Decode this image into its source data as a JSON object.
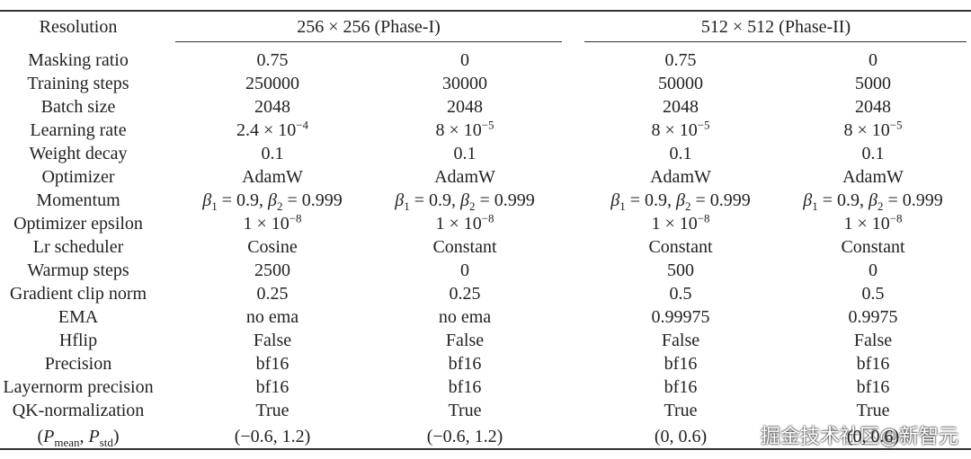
{
  "table": {
    "header": {
      "label": "Resolution",
      "groups": [
        "256 × 256 (Phase-I)",
        "512 × 512 (Phase-II)"
      ]
    },
    "rows": [
      {
        "label": "Masking ratio",
        "cells": [
          "0.75",
          "0",
          "0.75",
          "0"
        ]
      },
      {
        "label": "Training steps",
        "cells": [
          "250000",
          "30000",
          "50000",
          "5000"
        ]
      },
      {
        "label": "Batch size",
        "cells": [
          "2048",
          "2048",
          "2048",
          "2048"
        ]
      },
      {
        "label": "Learning rate",
        "cells": [
          [
            {
              "text": "2.4 × 10"
            },
            {
              "sup": "−4"
            }
          ],
          [
            {
              "text": "8 × 10"
            },
            {
              "sup": "−5"
            }
          ],
          [
            {
              "text": "8 × 10"
            },
            {
              "sup": "−5"
            }
          ],
          [
            {
              "text": "8 × 10"
            },
            {
              "sup": "−5"
            }
          ]
        ]
      },
      {
        "label": "Weight decay",
        "cells": [
          "0.1",
          "0.1",
          "0.1",
          "0.1"
        ]
      },
      {
        "label": "Optimizer",
        "cells": [
          "AdamW",
          "AdamW",
          "AdamW",
          "AdamW"
        ]
      },
      {
        "label": "Momentum",
        "cells": [
          [
            {
              "math": "β"
            },
            {
              "sub": "1"
            },
            {
              "text": " = 0.9, "
            },
            {
              "math": "β"
            },
            {
              "sub": "2"
            },
            {
              "text": " = 0.999"
            }
          ],
          [
            {
              "math": "β"
            },
            {
              "sub": "1"
            },
            {
              "text": " = 0.9, "
            },
            {
              "math": "β"
            },
            {
              "sub": "2"
            },
            {
              "text": " = 0.999"
            }
          ],
          [
            {
              "math": "β"
            },
            {
              "sub": "1"
            },
            {
              "text": " = 0.9, "
            },
            {
              "math": "β"
            },
            {
              "sub": "2"
            },
            {
              "text": " = 0.999"
            }
          ],
          [
            {
              "math": "β"
            },
            {
              "sub": "1"
            },
            {
              "text": " = 0.9, "
            },
            {
              "math": "β"
            },
            {
              "sub": "2"
            },
            {
              "text": " = 0.999"
            }
          ]
        ]
      },
      {
        "label": "Optimizer epsilon",
        "cells": [
          [
            {
              "text": "1 × 10"
            },
            {
              "sup": "−8"
            }
          ],
          [
            {
              "text": "1 × 10"
            },
            {
              "sup": "−8"
            }
          ],
          [
            {
              "text": "1 × 10"
            },
            {
              "sup": "−8"
            }
          ],
          [
            {
              "text": "1 × 10"
            },
            {
              "sup": "−8"
            }
          ]
        ]
      },
      {
        "label": "Lr scheduler",
        "cells": [
          "Cosine",
          "Constant",
          "Constant",
          "Constant"
        ]
      },
      {
        "label": "Warmup steps",
        "cells": [
          "2500",
          "0",
          "500",
          "0"
        ]
      },
      {
        "label": "Gradient clip norm",
        "cells": [
          "0.25",
          "0.25",
          "0.5",
          "0.5"
        ]
      },
      {
        "label": "EMA",
        "cells": [
          "no ema",
          "no ema",
          "0.99975",
          "0.9975"
        ]
      },
      {
        "label": "Hflip",
        "cells": [
          "False",
          "False",
          "False",
          "False"
        ]
      },
      {
        "label": "Precision",
        "cells": [
          "bf16",
          "bf16",
          "bf16",
          "bf16"
        ]
      },
      {
        "label": "Layernorm precision",
        "cells": [
          "bf16",
          "bf16",
          "bf16",
          "bf16"
        ]
      },
      {
        "label": "QK-normalization",
        "cells": [
          "True",
          "True",
          "True",
          "True"
        ]
      },
      {
        "label": [
          {
            "text": "("
          },
          {
            "math": "P"
          },
          {
            "sub": "mean"
          },
          {
            "text": ", "
          },
          {
            "math": "P"
          },
          {
            "sub": "std"
          },
          {
            "text": ")"
          }
        ],
        "cells": [
          "(−0.6, 1.2)",
          "(−0.6, 1.2)",
          "(0, 0.6)",
          "(0, 0.6)"
        ]
      }
    ]
  },
  "watermark": "掘金技术社区@新智元"
}
